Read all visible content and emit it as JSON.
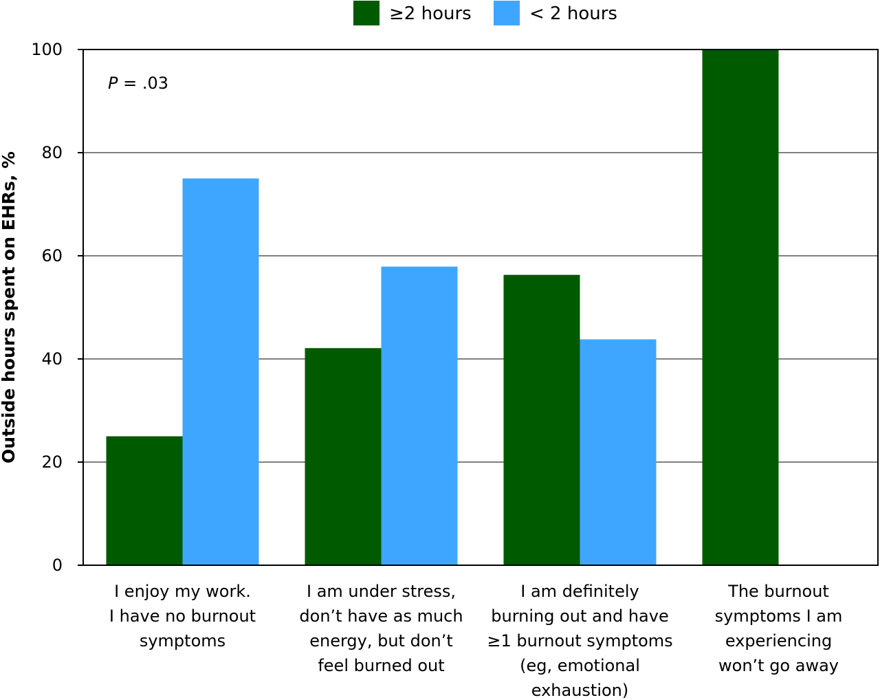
{
  "chart_data": {
    "type": "bar",
    "title": "",
    "xlabel": "",
    "ylabel": "Outside hours spent on EHRs, %",
    "ylim": [
      0,
      100
    ],
    "yticks": [
      0,
      20,
      40,
      60,
      80,
      100
    ],
    "grid": true,
    "legend_position": "top-center",
    "annotation": {
      "italic": "P",
      "rest": " = .03"
    },
    "categories": [
      [
        "I enjoy my work.",
        "I have no burnout",
        "symptoms"
      ],
      [
        "I am under stress,",
        "don’t have as much",
        "energy, but don’t",
        "feel burned out"
      ],
      [
        "I am definitely",
        "burning out and have",
        "≥1 burnout symptoms",
        "(eg, emotional",
        "exhaustion)"
      ],
      [
        "The burnout",
        "symptoms I am",
        "experiencing",
        "won’t go away"
      ]
    ],
    "series": [
      {
        "name": "≥2 hours",
        "color": "#005a00",
        "values": [
          25,
          42.1,
          56.3,
          100
        ]
      },
      {
        "name": "< 2 hours",
        "color": "#3fa6ff",
        "values": [
          75,
          57.9,
          43.8,
          0
        ]
      }
    ]
  }
}
